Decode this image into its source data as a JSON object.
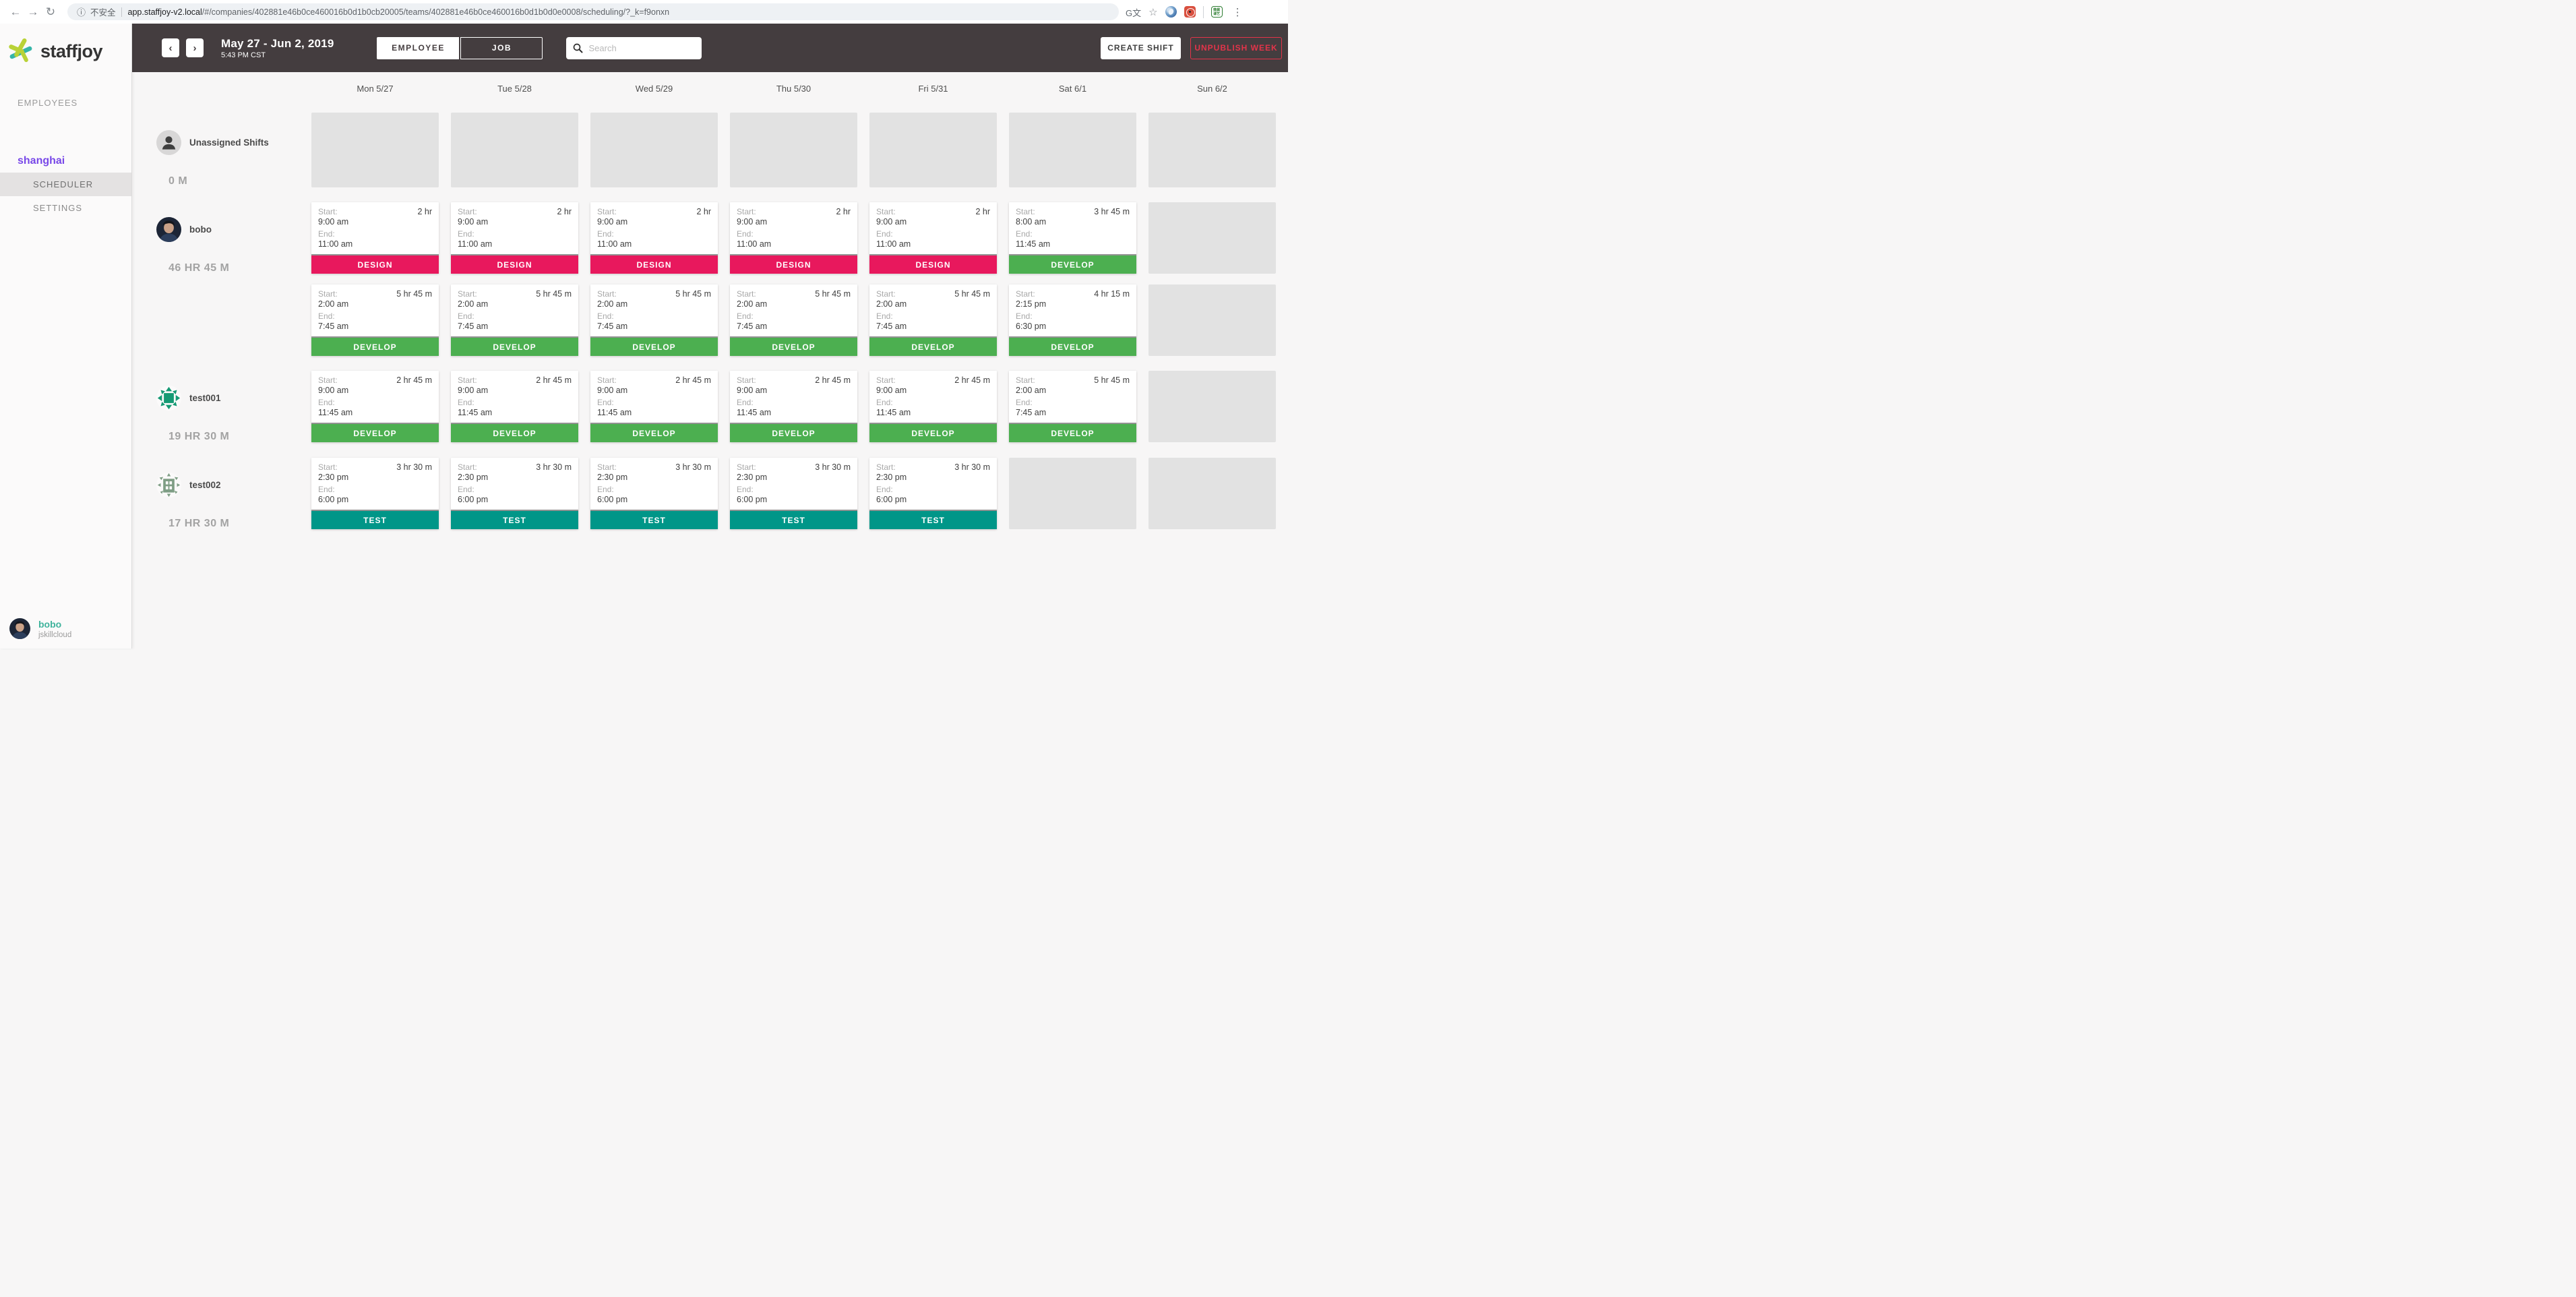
{
  "browser": {
    "security_label": "不安全",
    "url_host": "app.staffjoy-v2.local",
    "url_path": "/#/companies/402881e46b0ce460016b0d1b0cb20005/teams/402881e46b0ce460016b0d1b0d0e0008/scheduling/?_k=f9onxn",
    "extension_text_line1": "微掘",
    "extension_text_line2": "课艺"
  },
  "header": {
    "date_range": "May 27 - Jun 2, 2019",
    "time": "5:43 PM CST",
    "employee_tab": "EMPLOYEE",
    "job_tab": "JOB",
    "search_placeholder": "Search",
    "create_shift": "CREATE SHIFT",
    "unpublish_week": "UNPUBLISH WEEK"
  },
  "sidebar": {
    "brand": "staffjoy",
    "employees": "EMPLOYEES",
    "team": "shanghai",
    "scheduler": "SCHEDULER",
    "settings": "SETTINGS",
    "user": {
      "name": "bobo",
      "company": "jskillcloud"
    }
  },
  "colors": {
    "DESIGN": "#e8185d",
    "DEVELOP": "#4caf50",
    "TEST": "#009688",
    "team_purple": "#7848e8",
    "user_teal": "#3fb39c",
    "unpublish_red": "#e3344a"
  },
  "schedule": {
    "start_label": "Start:",
    "end_label": "End:",
    "days": [
      "Mon 5/27",
      "Tue 5/28",
      "Wed 5/29",
      "Thu 5/30",
      "Fri 5/31",
      "Sat 6/1",
      "Sun 6/2"
    ],
    "rows": [
      {
        "name": "Unassigned Shifts",
        "total": "0 M",
        "avatar": "unassigned",
        "lines": [
          [
            null,
            null,
            null,
            null,
            null,
            null,
            null
          ]
        ]
      },
      {
        "name": "bobo",
        "total": "46 HR 45 M",
        "avatar": "bobo",
        "lines": [
          [
            {
              "duration": "2 hr",
              "start": "9:00 am",
              "end": "11:00 am",
              "job": "DESIGN"
            },
            {
              "duration": "2 hr",
              "start": "9:00 am",
              "end": "11:00 am",
              "job": "DESIGN"
            },
            {
              "duration": "2 hr",
              "start": "9:00 am",
              "end": "11:00 am",
              "job": "DESIGN"
            },
            {
              "duration": "2 hr",
              "start": "9:00 am",
              "end": "11:00 am",
              "job": "DESIGN"
            },
            {
              "duration": "2 hr",
              "start": "9:00 am",
              "end": "11:00 am",
              "job": "DESIGN"
            },
            {
              "duration": "3 hr 45 m",
              "start": "8:00 am",
              "end": "11:45 am",
              "job": "DEVELOP"
            },
            null
          ],
          [
            {
              "duration": "5 hr 45 m",
              "start": "2:00 am",
              "end": "7:45 am",
              "job": "DEVELOP"
            },
            {
              "duration": "5 hr 45 m",
              "start": "2:00 am",
              "end": "7:45 am",
              "job": "DEVELOP"
            },
            {
              "duration": "5 hr 45 m",
              "start": "2:00 am",
              "end": "7:45 am",
              "job": "DEVELOP"
            },
            {
              "duration": "5 hr 45 m",
              "start": "2:00 am",
              "end": "7:45 am",
              "job": "DEVELOP"
            },
            {
              "duration": "5 hr 45 m",
              "start": "2:00 am",
              "end": "7:45 am",
              "job": "DEVELOP"
            },
            {
              "duration": "4 hr 15 m",
              "start": "2:15 pm",
              "end": "6:30 pm",
              "job": "DEVELOP"
            },
            null
          ]
        ]
      },
      {
        "name": "test001",
        "total": "19 HR 30 M",
        "avatar": "test001",
        "lines": [
          [
            {
              "duration": "2 hr 45 m",
              "start": "9:00 am",
              "end": "11:45 am",
              "job": "DEVELOP"
            },
            {
              "duration": "2 hr 45 m",
              "start": "9:00 am",
              "end": "11:45 am",
              "job": "DEVELOP"
            },
            {
              "duration": "2 hr 45 m",
              "start": "9:00 am",
              "end": "11:45 am",
              "job": "DEVELOP"
            },
            {
              "duration": "2 hr 45 m",
              "start": "9:00 am",
              "end": "11:45 am",
              "job": "DEVELOP"
            },
            {
              "duration": "2 hr 45 m",
              "start": "9:00 am",
              "end": "11:45 am",
              "job": "DEVELOP"
            },
            {
              "duration": "5 hr 45 m",
              "start": "2:00 am",
              "end": "7:45 am",
              "job": "DEVELOP"
            },
            null
          ]
        ]
      },
      {
        "name": "test002",
        "total": "17 HR 30 M",
        "avatar": "test002",
        "lines": [
          [
            {
              "duration": "3 hr 30 m",
              "start": "2:30 pm",
              "end": "6:00 pm",
              "job": "TEST"
            },
            {
              "duration": "3 hr 30 m",
              "start": "2:30 pm",
              "end": "6:00 pm",
              "job": "TEST"
            },
            {
              "duration": "3 hr 30 m",
              "start": "2:30 pm",
              "end": "6:00 pm",
              "job": "TEST"
            },
            {
              "duration": "3 hr 30 m",
              "start": "2:30 pm",
              "end": "6:00 pm",
              "job": "TEST"
            },
            {
              "duration": "3 hr 30 m",
              "start": "2:30 pm",
              "end": "6:00 pm",
              "job": "TEST"
            },
            null,
            null
          ]
        ]
      }
    ]
  }
}
